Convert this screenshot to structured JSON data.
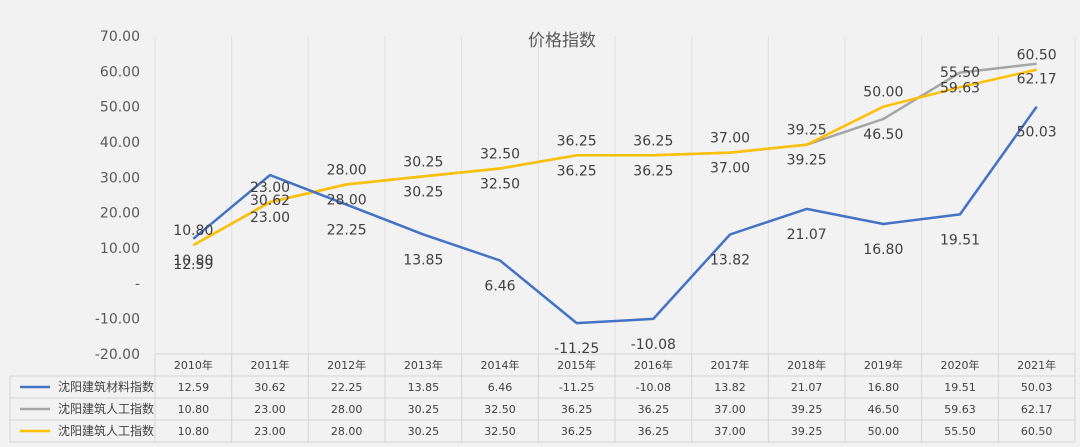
{
  "chart_data": {
    "type": "line",
    "title": "价格指数",
    "categories": [
      "2010年",
      "2011年",
      "2012年",
      "2013年",
      "2014年",
      "2015年",
      "2016年",
      "2017年",
      "2018年",
      "2019年",
      "2020年",
      "2021年"
    ],
    "series": [
      {
        "name": "沈阳建筑材料指数",
        "color": "#4472c4",
        "values": [
          12.59,
          30.62,
          22.25,
          13.85,
          6.46,
          -11.25,
          -10.08,
          13.82,
          21.07,
          16.8,
          19.51,
          50.03
        ]
      },
      {
        "name": "沈阳建筑人工指数",
        "color": "#a5a5a5",
        "values": [
          10.8,
          23.0,
          28.0,
          30.25,
          32.5,
          36.25,
          36.25,
          37.0,
          39.25,
          46.5,
          59.63,
          62.17
        ]
      },
      {
        "name": "沈阳建筑人工指数",
        "color": "#ffc000",
        "values": [
          10.8,
          23.0,
          28.0,
          30.25,
          32.5,
          36.25,
          36.25,
          37.0,
          39.25,
          50.0,
          55.5,
          60.5
        ]
      }
    ],
    "y_ticks": [
      "70.00",
      "60.00",
      "50.00",
      "40.00",
      "30.00",
      "20.00",
      "10.00",
      "-",
      "-10.00",
      "-20.00"
    ],
    "ylim": [
      -20,
      70
    ],
    "data_table": true
  }
}
